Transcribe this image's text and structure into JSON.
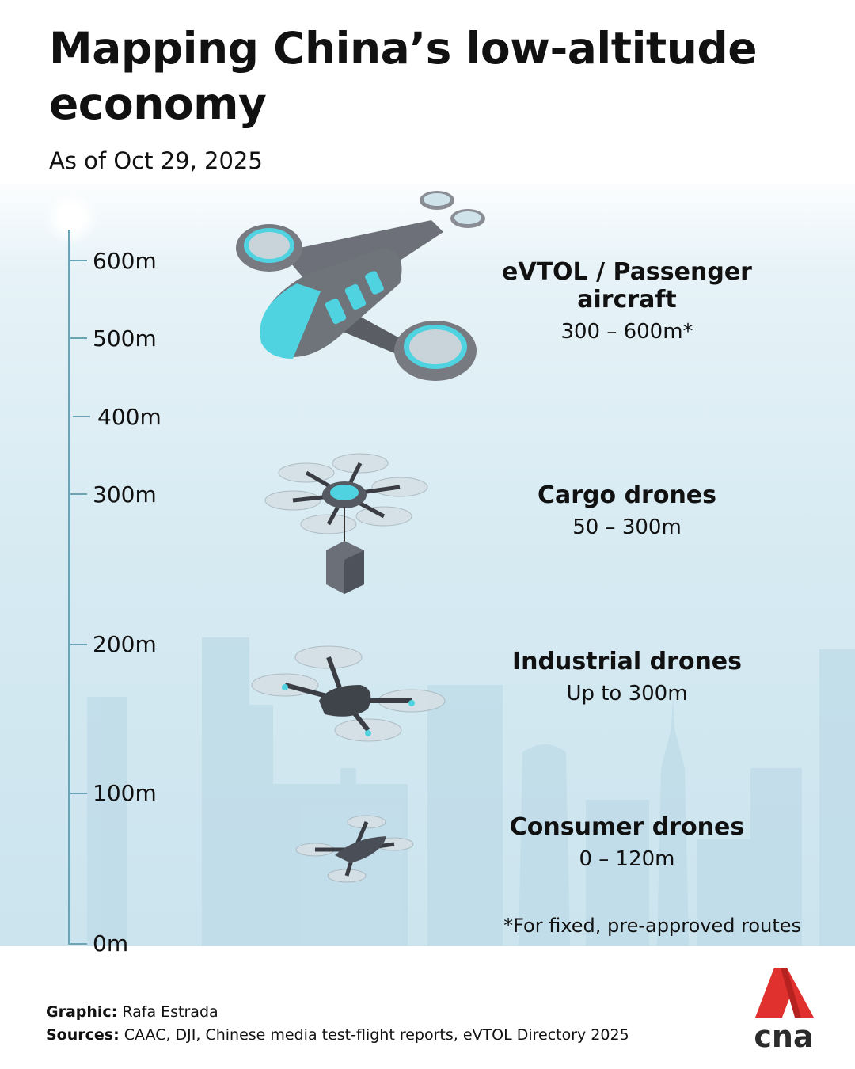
{
  "header": {
    "title": "Mapping China’s low-altitude economy",
    "subtitle": "As of Oct 29, 2025"
  },
  "axis": {
    "ticks": [
      "600m",
      "500m",
      "400m",
      "300m",
      "200m",
      "100m",
      "0m"
    ]
  },
  "categories": [
    {
      "name": "eVTOL / Passenger aircraft",
      "range": "300 – 600m*",
      "icon": "evtol-aircraft-icon"
    },
    {
      "name": "Cargo drones",
      "range": "50 – 300m",
      "icon": "cargo-drone-icon"
    },
    {
      "name": "Industrial drones",
      "range": "Up to 300m",
      "icon": "industrial-drone-icon"
    },
    {
      "name": "Consumer drones",
      "range": "0 – 120m",
      "icon": "consumer-drone-icon"
    }
  ],
  "note": "*For fixed, pre-approved routes",
  "footer": {
    "graphic_label": "Graphic:",
    "graphic_value": "Rafa Estrada",
    "sources_label": "Sources:",
    "sources_value": "CAAC, DJI, Chinese media test-flight reports, eVTOL Directory 2025"
  },
  "logo": {
    "text": "cna",
    "colors": {
      "red": "#e0312f",
      "dark": "#2b2b2b"
    }
  },
  "colors": {
    "axis": "#6aa4b5",
    "sky": "#d6eaf2",
    "accent": "#4fd3e0"
  }
}
